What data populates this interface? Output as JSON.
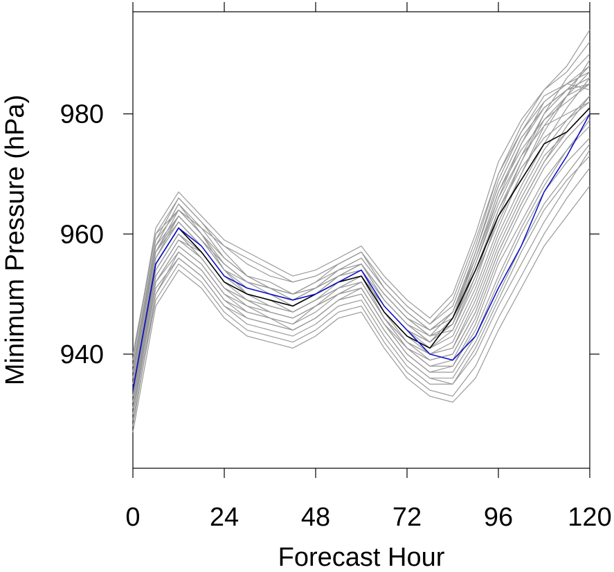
{
  "chart_data": {
    "type": "line",
    "xlabel": "Forecast Hour",
    "ylabel": "Minimum Pressure (hPa)",
    "x": [
      0,
      6,
      12,
      18,
      24,
      30,
      36,
      42,
      48,
      54,
      60,
      66,
      72,
      78,
      84,
      90,
      96,
      102,
      108,
      114,
      120
    ],
    "xlim": [
      0,
      120
    ],
    "ylim": [
      921,
      997
    ],
    "xticks": [
      0,
      24,
      48,
      72,
      96,
      120
    ],
    "yticks": [
      940,
      960,
      980
    ],
    "grid": false,
    "colors": {
      "ensemble": "#999999",
      "mean": "#000000",
      "control": "#1010cc"
    },
    "series": [
      {
        "role": "mean",
        "values": [
          934,
          955,
          961,
          957,
          952,
          950,
          949,
          948,
          950,
          952,
          953,
          947,
          943,
          941,
          946,
          954,
          963,
          969,
          975,
          977,
          981
        ]
      },
      {
        "role": "control",
        "values": [
          934,
          955,
          961,
          958,
          953,
          951,
          950,
          949,
          950,
          952,
          954,
          948,
          944,
          940,
          939,
          943,
          951,
          958,
          967,
          973,
          980
        ]
      },
      {
        "role": "member",
        "values": [
          938,
          957,
          963,
          959,
          955,
          952,
          951,
          950,
          951,
          953,
          955,
          950,
          946,
          943,
          944,
          952,
          963,
          972,
          980,
          986,
          990
        ]
      },
      {
        "role": "member",
        "values": [
          932,
          954,
          960,
          956,
          951,
          949,
          948,
          947,
          949,
          951,
          952,
          946,
          942,
          940,
          941,
          948,
          958,
          966,
          973,
          977,
          981
        ]
      },
      {
        "role": "member",
        "values": [
          936,
          958,
          965,
          960,
          954,
          950,
          949,
          948,
          950,
          953,
          955,
          949,
          945,
          942,
          945,
          955,
          966,
          975,
          982,
          985,
          988
        ]
      },
      {
        "role": "member",
        "values": [
          930,
          952,
          958,
          955,
          950,
          948,
          946,
          945,
          948,
          950,
          951,
          945,
          940,
          937,
          938,
          945,
          955,
          962,
          969,
          974,
          978
        ]
      },
      {
        "role": "member",
        "values": [
          940,
          960,
          964,
          961,
          958,
          955,
          953,
          952,
          953,
          955,
          957,
          952,
          948,
          945,
          948,
          958,
          970,
          977,
          983,
          985,
          984
        ]
      },
      {
        "role": "member",
        "values": [
          928,
          950,
          957,
          954,
          949,
          946,
          945,
          944,
          946,
          949,
          950,
          944,
          939,
          936,
          936,
          942,
          950,
          958,
          965,
          970,
          975
        ]
      },
      {
        "role": "member",
        "values": [
          935,
          956,
          962,
          958,
          953,
          951,
          950,
          948,
          950,
          953,
          954,
          947,
          943,
          940,
          942,
          950,
          960,
          968,
          975,
          981,
          986
        ]
      },
      {
        "role": "member",
        "values": [
          933,
          953,
          959,
          957,
          952,
          949,
          947,
          946,
          948,
          951,
          953,
          948,
          944,
          941,
          943,
          951,
          961,
          970,
          978,
          983,
          987
        ]
      },
      {
        "role": "member",
        "values": [
          937,
          959,
          966,
          962,
          957,
          953,
          951,
          949,
          951,
          954,
          956,
          951,
          947,
          944,
          947,
          957,
          968,
          976,
          981,
          984,
          986
        ]
      },
      {
        "role": "member",
        "values": [
          931,
          951,
          956,
          953,
          948,
          945,
          944,
          943,
          945,
          948,
          949,
          943,
          938,
          935,
          935,
          940,
          948,
          955,
          962,
          968,
          974
        ]
      },
      {
        "role": "member",
        "values": [
          939,
          961,
          967,
          963,
          959,
          957,
          955,
          953,
          954,
          956,
          958,
          953,
          949,
          946,
          950,
          960,
          972,
          979,
          984,
          987,
          992
        ]
      },
      {
        "role": "member",
        "values": [
          929,
          949,
          955,
          952,
          947,
          944,
          943,
          942,
          944,
          947,
          948,
          942,
          937,
          934,
          933,
          938,
          946,
          953,
          960,
          966,
          971
        ]
      },
      {
        "role": "member",
        "values": [
          934,
          955,
          961,
          957,
          952,
          950,
          949,
          947,
          949,
          952,
          953,
          946,
          942,
          939,
          940,
          947,
          957,
          965,
          972,
          978,
          983
        ]
      },
      {
        "role": "member",
        "values": [
          936,
          957,
          964,
          960,
          956,
          953,
          952,
          950,
          951,
          953,
          955,
          949,
          945,
          942,
          946,
          956,
          967,
          974,
          979,
          982,
          985
        ]
      },
      {
        "role": "member",
        "values": [
          932,
          953,
          959,
          956,
          951,
          948,
          947,
          946,
          948,
          950,
          952,
          946,
          941,
          938,
          939,
          946,
          956,
          964,
          971,
          976,
          980
        ]
      },
      {
        "role": "member",
        "values": [
          938,
          958,
          963,
          959,
          954,
          952,
          951,
          950,
          952,
          954,
          955,
          950,
          946,
          944,
          947,
          956,
          966,
          973,
          978,
          980,
          982
        ]
      },
      {
        "role": "member",
        "values": [
          927,
          948,
          954,
          951,
          946,
          943,
          942,
          941,
          943,
          946,
          947,
          941,
          936,
          933,
          932,
          936,
          944,
          951,
          958,
          963,
          968
        ]
      },
      {
        "role": "member",
        "values": [
          935,
          956,
          962,
          958,
          953,
          950,
          948,
          947,
          949,
          951,
          953,
          947,
          943,
          941,
          944,
          953,
          964,
          972,
          979,
          983,
          985
        ]
      },
      {
        "role": "member",
        "values": [
          933,
          954,
          960,
          957,
          952,
          950,
          949,
          948,
          950,
          952,
          954,
          948,
          944,
          942,
          945,
          954,
          964,
          971,
          976,
          979,
          982
        ]
      },
      {
        "role": "member",
        "values": [
          937,
          958,
          965,
          961,
          956,
          953,
          951,
          949,
          950,
          953,
          955,
          950,
          946,
          943,
          945,
          953,
          962,
          970,
          977,
          983,
          989
        ]
      },
      {
        "role": "member",
        "values": [
          931,
          952,
          958,
          955,
          950,
          947,
          946,
          944,
          946,
          949,
          951,
          945,
          940,
          937,
          937,
          943,
          952,
          960,
          967,
          972,
          976
        ]
      },
      {
        "role": "member",
        "values": [
          939,
          960,
          966,
          962,
          958,
          956,
          954,
          952,
          953,
          955,
          957,
          952,
          948,
          945,
          949,
          959,
          970,
          978,
          984,
          988,
          994
        ]
      },
      {
        "role": "member",
        "values": [
          930,
          950,
          956,
          953,
          948,
          946,
          945,
          944,
          946,
          949,
          950,
          944,
          939,
          936,
          935,
          941,
          949,
          957,
          964,
          969,
          973
        ]
      },
      {
        "role": "member",
        "values": [
          936,
          957,
          963,
          959,
          954,
          951,
          950,
          949,
          951,
          954,
          956,
          951,
          947,
          944,
          946,
          955,
          965,
          973,
          980,
          984,
          986
        ]
      },
      {
        "role": "member",
        "values": [
          934,
          955,
          961,
          958,
          953,
          951,
          950,
          948,
          950,
          952,
          953,
          947,
          942,
          940,
          941,
          949,
          959,
          967,
          974,
          979,
          983
        ]
      },
      {
        "role": "member",
        "values": [
          938,
          959,
          964,
          960,
          955,
          952,
          950,
          949,
          951,
          953,
          954,
          948,
          944,
          942,
          946,
          957,
          969,
          977,
          982,
          985,
          987
        ]
      },
      {
        "role": "member",
        "values": [
          932,
          952,
          957,
          954,
          949,
          947,
          946,
          945,
          947,
          950,
          952,
          946,
          941,
          939,
          940,
          947,
          957,
          965,
          972,
          977,
          981
        ]
      },
      {
        "role": "member",
        "values": [
          935,
          956,
          963,
          959,
          955,
          952,
          951,
          950,
          952,
          955,
          957,
          951,
          947,
          944,
          947,
          956,
          967,
          975,
          981,
          984,
          985
        ]
      },
      {
        "role": "member",
        "values": [
          933,
          954,
          960,
          956,
          951,
          949,
          947,
          946,
          948,
          950,
          951,
          945,
          941,
          938,
          938,
          944,
          953,
          961,
          968,
          974,
          979
        ]
      },
      {
        "role": "member",
        "values": [
          937,
          957,
          962,
          958,
          953,
          950,
          949,
          948,
          950,
          952,
          954,
          949,
          945,
          943,
          947,
          957,
          968,
          976,
          981,
          984,
          988
        ]
      }
    ]
  }
}
